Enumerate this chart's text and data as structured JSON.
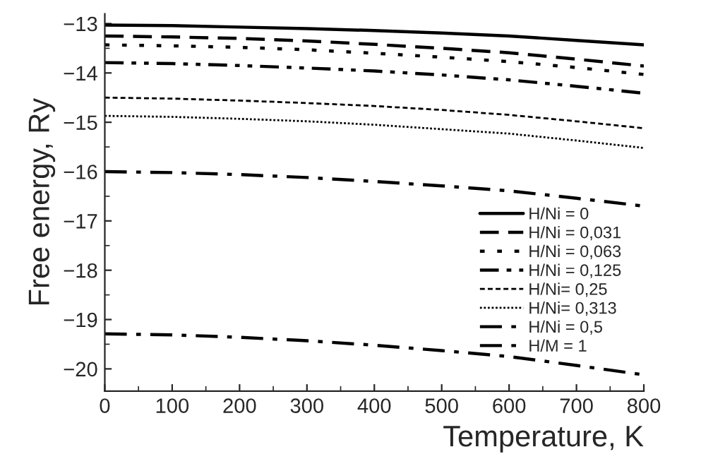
{
  "chart_data": {
    "type": "line",
    "xlabel": "Temperature, K",
    "ylabel": "Free energy, Ry",
    "x": [
      0,
      100,
      200,
      300,
      400,
      500,
      600,
      700,
      800
    ],
    "series": [
      {
        "name": "H/Ni = 0",
        "color": "#000000",
        "line_style": "solid",
        "values": [
          -13.03,
          -13.04,
          -13.07,
          -13.1,
          -13.14,
          -13.19,
          -13.25,
          -13.34,
          -13.43
        ]
      },
      {
        "name": "H/Ni = 0,031",
        "color": "#000000",
        "line_style": "dashed",
        "values": [
          -13.25,
          -13.27,
          -13.3,
          -13.35,
          -13.42,
          -13.5,
          -13.59,
          -13.72,
          -13.86
        ]
      },
      {
        "name": "H/Ni = 0,063",
        "color": "#000000",
        "line_style": "dotted",
        "values": [
          -13.43,
          -13.45,
          -13.48,
          -13.53,
          -13.6,
          -13.68,
          -13.77,
          -13.89,
          -14.03
        ]
      },
      {
        "name": "H/Ni = 0,125",
        "color": "#000000",
        "line_style": "dashdotdot",
        "values": [
          -13.79,
          -13.81,
          -13.85,
          -13.9,
          -13.96,
          -14.04,
          -14.14,
          -14.27,
          -14.41
        ]
      },
      {
        "name": "H/Ni= 0,25",
        "color": "#000000",
        "line_style": "shortdash",
        "values": [
          -14.5,
          -14.52,
          -14.56,
          -14.61,
          -14.67,
          -14.75,
          -14.85,
          -14.98,
          -15.12
        ]
      },
      {
        "name": "H/Ni= 0,313",
        "color": "#000000",
        "line_style": "densedot",
        "values": [
          -14.87,
          -14.89,
          -14.93,
          -14.98,
          -15.05,
          -15.14,
          -15.23,
          -15.37,
          -15.52
        ]
      },
      {
        "name": "H/Ni = 0,5",
        "color": "#000000",
        "line_style": "dashdot",
        "values": [
          -16.0,
          -16.02,
          -16.06,
          -16.12,
          -16.2,
          -16.29,
          -16.39,
          -16.54,
          -16.7
        ]
      },
      {
        "name": "H/M = 1",
        "color": "#000000",
        "line_style": "dashdot",
        "values": [
          -19.29,
          -19.31,
          -19.36,
          -19.43,
          -19.52,
          -19.63,
          -19.75,
          -19.93,
          -20.12
        ]
      }
    ],
    "xlim": [
      0,
      800
    ],
    "xticks": [
      0,
      100,
      200,
      300,
      400,
      500,
      600,
      700,
      800
    ],
    "ylim": [
      -20.45,
      -12.8
    ],
    "yticks": [
      -20,
      -19,
      -18,
      -17,
      -16,
      -15,
      -14,
      -13
    ],
    "legend": "bottom right",
    "grid": false
  }
}
